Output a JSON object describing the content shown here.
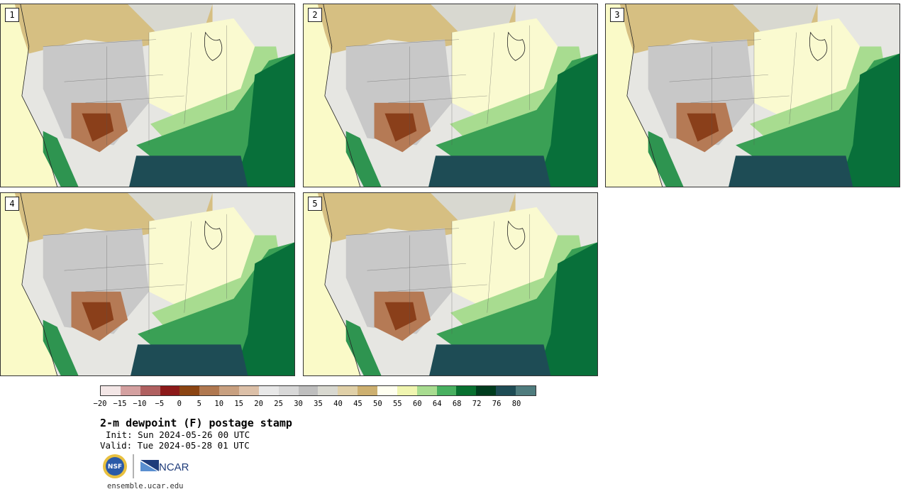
{
  "figure": {
    "title": "2-m dewpoint (F) postage stamp",
    "init": "Init: Sun 2024-05-26 00 UTC",
    "valid": "Valid: Tue 2024-05-28 01 UTC",
    "url": "ensemble.ucar.edu",
    "logos": {
      "nsf": "NSF",
      "ncar": "NCAR"
    }
  },
  "panels": [
    {
      "label": "1",
      "moist_reach": 0.52
    },
    {
      "label": "2",
      "moist_reach": 0.46
    },
    {
      "label": "3",
      "moist_reach": 0.42
    },
    {
      "label": "4",
      "moist_reach": 0.55
    },
    {
      "label": "5",
      "moist_reach": 0.48
    }
  ],
  "colorbar": {
    "unit": "F",
    "ticks": [
      "−20",
      "−15",
      "−10",
      "−5",
      "0",
      "5",
      "10",
      "15",
      "20",
      "25",
      "30",
      "35",
      "40",
      "45",
      "50",
      "55",
      "60",
      "64",
      "68",
      "72",
      "76",
      "80"
    ],
    "colors": [
      "#f3e6e6",
      "#d4a0a0",
      "#b06060",
      "#8c1a1a",
      "#8b4513",
      "#b07850",
      "#c8a080",
      "#dcc0a8",
      "#e8e8e8",
      "#d8d8d8",
      "#bebebe",
      "#d8d8d0",
      "#e0d0a8",
      "#cdb070",
      "#fffff0",
      "#f0f5b0",
      "#a8dc90",
      "#48b060",
      "#087030",
      "#003c1e",
      "#1e4c55",
      "#4f7c7e"
    ]
  }
}
